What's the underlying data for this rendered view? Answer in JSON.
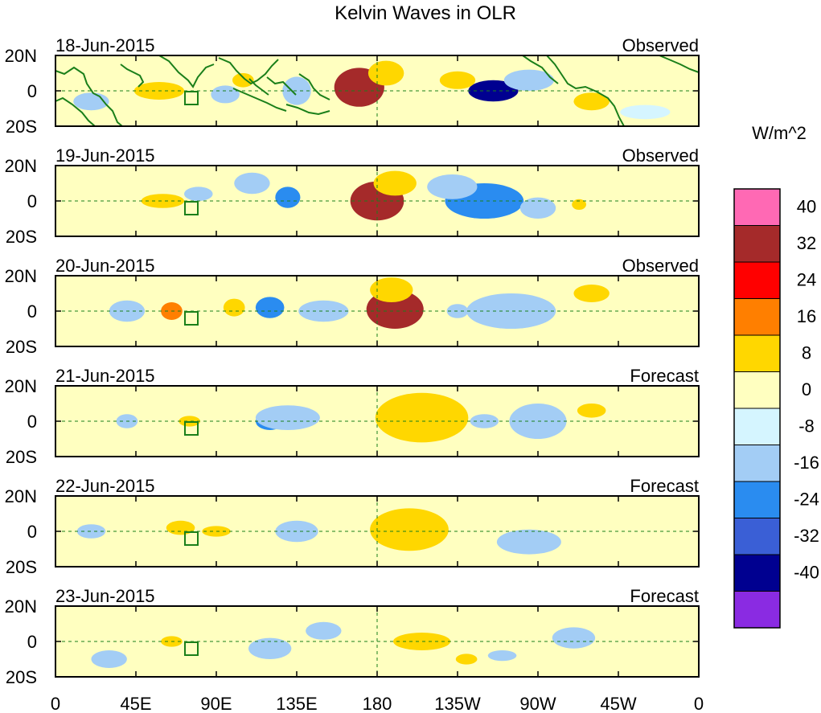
{
  "chart_data": {
    "type": "heatmap",
    "title": "Kelvin Waves in OLR",
    "units": "W/m^2",
    "x_tick_labels": [
      "0",
      "45E",
      "90E",
      "135E",
      "180",
      "135W",
      "90W",
      "45W",
      "0"
    ],
    "y_tick_labels": [
      "20N",
      "0",
      "20S"
    ],
    "xlim_deg_east": [
      0,
      360
    ],
    "ylim_deg": [
      -20,
      20
    ],
    "colorbar": {
      "levels": [
        40,
        32,
        24,
        16,
        8,
        0,
        -8,
        -16,
        -24,
        -32,
        -40
      ],
      "colors": [
        "#ff69b4",
        "#a52a2a",
        "#ff0000",
        "#ff7f00",
        "#ffd700",
        "#ffffc0",
        "#d5f5ff",
        "#a3cdf5",
        "#2a8cf0",
        "#3a5fd6",
        "#000090",
        "#8a2be2"
      ]
    },
    "panels": [
      {
        "date": "18-Jun-2015",
        "kind": "Observed",
        "anomalies": [
          {
            "lon": 170,
            "lat": 2,
            "value": 34,
            "rx": 14,
            "ry": 11
          },
          {
            "lon": 185,
            "lat": 10,
            "value": 10,
            "rx": 10,
            "ry": 7
          },
          {
            "lon": 58,
            "lat": 0,
            "value": 10,
            "rx": 14,
            "ry": 5
          },
          {
            "lon": 105,
            "lat": 6,
            "value": 12,
            "rx": 6,
            "ry": 4
          },
          {
            "lon": 135,
            "lat": 0,
            "value": -10,
            "rx": 8,
            "ry": 8
          },
          {
            "lon": 95,
            "lat": -2,
            "value": -9,
            "rx": 8,
            "ry": 5
          },
          {
            "lon": 245,
            "lat": 0,
            "value": -38,
            "rx": 14,
            "ry": 6
          },
          {
            "lon": 265,
            "lat": 6,
            "value": -9,
            "rx": 14,
            "ry": 6
          },
          {
            "lon": 225,
            "lat": 6,
            "value": 9,
            "rx": 10,
            "ry": 5
          },
          {
            "lon": 300,
            "lat": -6,
            "value": 9,
            "rx": 10,
            "ry": 5
          },
          {
            "lon": 20,
            "lat": -6,
            "value": -9,
            "rx": 10,
            "ry": 5
          },
          {
            "lon": 330,
            "lat": -12,
            "value": -7,
            "rx": 14,
            "ry": 4
          }
        ]
      },
      {
        "date": "19-Jun-2015",
        "kind": "Observed",
        "anomalies": [
          {
            "lon": 180,
            "lat": 0,
            "value": 34,
            "rx": 15,
            "ry": 11
          },
          {
            "lon": 190,
            "lat": 10,
            "value": 10,
            "rx": 12,
            "ry": 7
          },
          {
            "lon": 62,
            "lat": 0,
            "value": 30,
            "rx": 5,
            "ry": 2
          },
          {
            "lon": 60,
            "lat": 0,
            "value": 9,
            "rx": 12,
            "ry": 4
          },
          {
            "lon": 130,
            "lat": 2,
            "value": -17,
            "rx": 7,
            "ry": 6
          },
          {
            "lon": 240,
            "lat": 0,
            "value": -18,
            "rx": 22,
            "ry": 10
          },
          {
            "lon": 222,
            "lat": 8,
            "value": -9,
            "rx": 14,
            "ry": 7
          },
          {
            "lon": 270,
            "lat": -4,
            "value": -9,
            "rx": 10,
            "ry": 6
          },
          {
            "lon": 293,
            "lat": -2,
            "value": 10,
            "rx": 4,
            "ry": 3
          },
          {
            "lon": 80,
            "lat": 4,
            "value": -9,
            "rx": 8,
            "ry": 4
          },
          {
            "lon": 110,
            "lat": 10,
            "value": -9,
            "rx": 10,
            "ry": 6
          }
        ]
      },
      {
        "date": "20-Jun-2015",
        "kind": "Observed",
        "anomalies": [
          {
            "lon": 190,
            "lat": 1,
            "value": 33,
            "rx": 16,
            "ry": 11
          },
          {
            "lon": 188,
            "lat": 12,
            "value": 10,
            "rx": 12,
            "ry": 7
          },
          {
            "lon": 65,
            "lat": 0,
            "value": 18,
            "rx": 6,
            "ry": 5
          },
          {
            "lon": 100,
            "lat": 2,
            "value": 12,
            "rx": 6,
            "ry": 5
          },
          {
            "lon": 120,
            "lat": 2,
            "value": -17,
            "rx": 8,
            "ry": 6
          },
          {
            "lon": 150,
            "lat": 0,
            "value": -10,
            "rx": 14,
            "ry": 6
          },
          {
            "lon": 260,
            "lat": 2,
            "value": -17,
            "rx": 10,
            "ry": 7
          },
          {
            "lon": 255,
            "lat": 0,
            "value": -9,
            "rx": 25,
            "ry": 10
          },
          {
            "lon": 40,
            "lat": 0,
            "value": -9,
            "rx": 10,
            "ry": 6
          },
          {
            "lon": 225,
            "lat": 0,
            "value": -9,
            "rx": 6,
            "ry": 4
          },
          {
            "lon": 300,
            "lat": 10,
            "value": 9,
            "rx": 10,
            "ry": 5
          }
        ]
      },
      {
        "date": "21-Jun-2015",
        "kind": "Forecast",
        "anomalies": [
          {
            "lon": 205,
            "lat": 1,
            "value": 26,
            "rx": 16,
            "ry": 9
          },
          {
            "lon": 205,
            "lat": 2,
            "value": 10,
            "rx": 26,
            "ry": 14
          },
          {
            "lon": 40,
            "lat": 0,
            "value": -9,
            "rx": 6,
            "ry": 4
          },
          {
            "lon": 75,
            "lat": 0,
            "value": 10,
            "rx": 6,
            "ry": 3
          },
          {
            "lon": 120,
            "lat": 0,
            "value": -17,
            "rx": 8,
            "ry": 5
          },
          {
            "lon": 130,
            "lat": 2,
            "value": -9,
            "rx": 18,
            "ry": 7
          },
          {
            "lon": 275,
            "lat": 2,
            "value": -18,
            "rx": 5,
            "ry": 4
          },
          {
            "lon": 270,
            "lat": 0,
            "value": -9,
            "rx": 16,
            "ry": 10
          },
          {
            "lon": 240,
            "lat": 0,
            "value": -9,
            "rx": 8,
            "ry": 4
          },
          {
            "lon": 300,
            "lat": 6,
            "value": 9,
            "rx": 8,
            "ry": 4
          }
        ]
      },
      {
        "date": "22-Jun-2015",
        "kind": "Forecast",
        "anomalies": [
          {
            "lon": 200,
            "lat": 0,
            "value": 18,
            "rx": 5,
            "ry": 4
          },
          {
            "lon": 198,
            "lat": 1,
            "value": 10,
            "rx": 22,
            "ry": 12
          },
          {
            "lon": 130,
            "lat": 0,
            "value": -17,
            "rx": 5,
            "ry": 3
          },
          {
            "lon": 135,
            "lat": 0,
            "value": -9,
            "rx": 12,
            "ry": 6
          },
          {
            "lon": 265,
            "lat": -6,
            "value": -9,
            "rx": 18,
            "ry": 7
          },
          {
            "lon": 20,
            "lat": 0,
            "value": -9,
            "rx": 8,
            "ry": 4
          },
          {
            "lon": 70,
            "lat": 2,
            "value": 9,
            "rx": 8,
            "ry": 4
          },
          {
            "lon": 90,
            "lat": 0,
            "value": 9,
            "rx": 8,
            "ry": 3
          }
        ]
      },
      {
        "date": "23-Jun-2015",
        "kind": "Forecast",
        "anomalies": [
          {
            "lon": 205,
            "lat": 0,
            "value": 10,
            "rx": 16,
            "ry": 5
          },
          {
            "lon": 65,
            "lat": 0,
            "value": 10,
            "rx": 6,
            "ry": 3
          },
          {
            "lon": 120,
            "lat": -4,
            "value": -9,
            "rx": 12,
            "ry": 6
          },
          {
            "lon": 150,
            "lat": 6,
            "value": -9,
            "rx": 10,
            "ry": 5
          },
          {
            "lon": 290,
            "lat": 2,
            "value": -9,
            "rx": 12,
            "ry": 6
          },
          {
            "lon": 30,
            "lat": -10,
            "value": -9,
            "rx": 10,
            "ry": 5
          },
          {
            "lon": 230,
            "lat": -10,
            "value": 9,
            "rx": 6,
            "ry": 3
          },
          {
            "lon": 250,
            "lat": -8,
            "value": -9,
            "rx": 8,
            "ry": 3
          }
        ]
      }
    ]
  }
}
